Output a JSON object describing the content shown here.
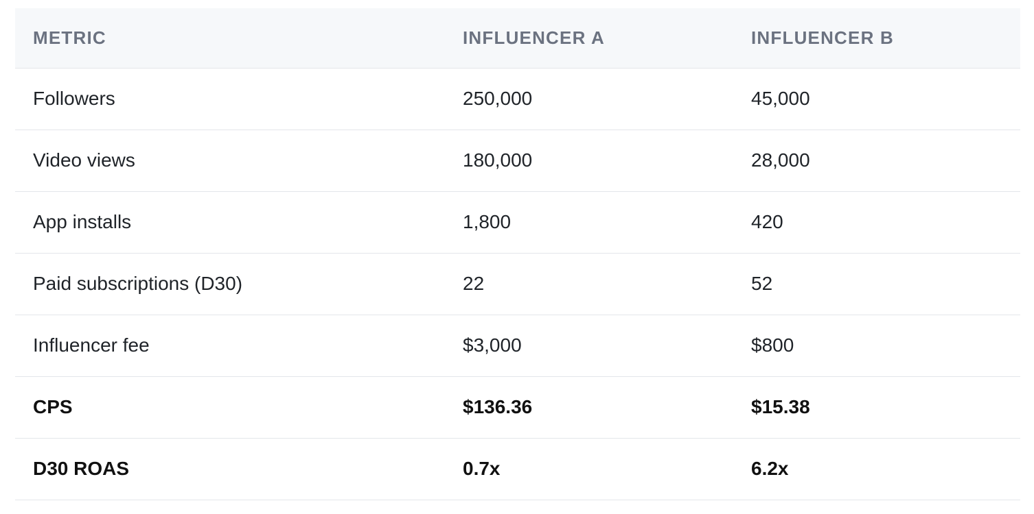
{
  "table": {
    "headers": [
      "METRIC",
      "INFLUENCER A",
      "INFLUENCER B"
    ],
    "rows": [
      {
        "metric": "Followers",
        "a": "250,000",
        "b": "45,000",
        "bold": false
      },
      {
        "metric": "Video views",
        "a": "180,000",
        "b": "28,000",
        "bold": false
      },
      {
        "metric": "App installs",
        "a": "1,800",
        "b": "420",
        "bold": false
      },
      {
        "metric": "Paid subscriptions (D30)",
        "a": "22",
        "b": "52",
        "bold": false
      },
      {
        "metric": "Influencer fee",
        "a": "$3,000",
        "b": "$800",
        "bold": false
      },
      {
        "metric": "CPS",
        "a": "$136.36",
        "b": "$15.38",
        "bold": true
      },
      {
        "metric": "D30 ROAS",
        "a": "0.7x",
        "b": "6.2x",
        "bold": true
      }
    ]
  }
}
